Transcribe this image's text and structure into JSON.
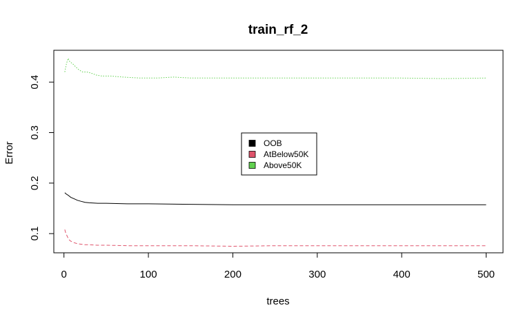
{
  "chart_data": {
    "type": "line",
    "title": "train_rf_2",
    "xlabel": "trees",
    "ylabel": "Error",
    "xlim": [
      -12,
      520
    ],
    "ylim": [
      0.062,
      0.463
    ],
    "xticks": [
      0,
      100,
      200,
      300,
      400,
      500
    ],
    "yticks": [
      0.1,
      0.2,
      0.3,
      0.4
    ],
    "grid": false,
    "legend_position": "center",
    "series": [
      {
        "name": "OOB",
        "color": "#000000",
        "dash": "solid",
        "x": [
          1,
          3,
          5,
          8,
          12,
          16,
          20,
          25,
          30,
          40,
          50,
          75,
          100,
          150,
          200,
          250,
          300,
          350,
          400,
          450,
          500
        ],
        "y": [
          0.181,
          0.178,
          0.176,
          0.172,
          0.169,
          0.166,
          0.164,
          0.162,
          0.161,
          0.16,
          0.16,
          0.159,
          0.159,
          0.158,
          0.157,
          0.157,
          0.157,
          0.157,
          0.157,
          0.157,
          0.157
        ]
      },
      {
        "name": "AtBelow50K",
        "color": "#DF536B",
        "dash": "dashed",
        "x": [
          1,
          2,
          4,
          6,
          8,
          12,
          16,
          20,
          25,
          30,
          40,
          50,
          75,
          100,
          150,
          200,
          250,
          300,
          350,
          400,
          450,
          500
        ],
        "y": [
          0.108,
          0.102,
          0.094,
          0.088,
          0.085,
          0.082,
          0.08,
          0.079,
          0.078,
          0.078,
          0.077,
          0.077,
          0.076,
          0.076,
          0.076,
          0.075,
          0.076,
          0.076,
          0.076,
          0.076,
          0.076,
          0.076
        ]
      },
      {
        "name": "Above50K",
        "color": "#61D04F",
        "dash": "dotted",
        "x": [
          1,
          3,
          5,
          7,
          10,
          14,
          18,
          22,
          27,
          32,
          38,
          45,
          55,
          70,
          90,
          110,
          130,
          150,
          200,
          250,
          300,
          350,
          400,
          450,
          500
        ],
        "y": [
          0.42,
          0.437,
          0.447,
          0.44,
          0.437,
          0.43,
          0.424,
          0.42,
          0.42,
          0.418,
          0.414,
          0.412,
          0.412,
          0.41,
          0.408,
          0.408,
          0.41,
          0.408,
          0.408,
          0.408,
          0.408,
          0.408,
          0.408,
          0.407,
          0.408
        ]
      }
    ]
  }
}
